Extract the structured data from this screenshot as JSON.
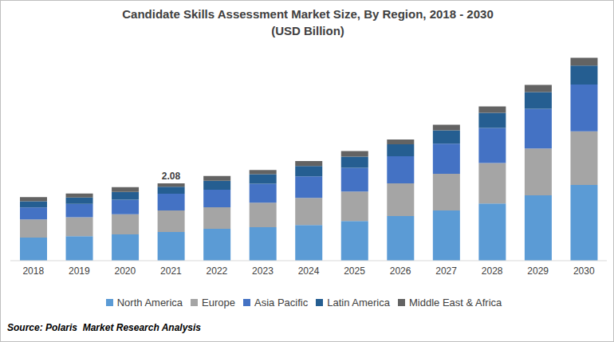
{
  "chart_data": {
    "type": "bar",
    "title": "Candidate Skills Assessment Market Size, By Region, 2018 - 2030",
    "subtitle": "(USD Billion)",
    "categories": [
      "2018",
      "2019",
      "2020",
      "2021",
      "2022",
      "2023",
      "2024",
      "2025",
      "2026",
      "2027",
      "2028",
      "2029",
      "2030"
    ],
    "series": [
      {
        "name": "North America",
        "color": "#5b9bd5",
        "values": [
          0.62,
          0.66,
          0.71,
          0.77,
          0.86,
          0.9,
          0.96,
          1.07,
          1.2,
          1.35,
          1.54,
          1.76,
          2.04
        ]
      },
      {
        "name": "Europe",
        "color": "#a5a5a5",
        "values": [
          0.49,
          0.51,
          0.54,
          0.58,
          0.58,
          0.66,
          0.73,
          0.79,
          0.88,
          0.99,
          1.09,
          1.26,
          1.44
        ]
      },
      {
        "name": "Asia Pacific",
        "color": "#4472c4",
        "values": [
          0.32,
          0.36,
          0.39,
          0.45,
          0.47,
          0.51,
          0.58,
          0.64,
          0.73,
          0.81,
          0.94,
          1.07,
          1.26
        ]
      },
      {
        "name": "Latin America",
        "color": "#255e91",
        "values": [
          0.17,
          0.17,
          0.21,
          0.19,
          0.24,
          0.26,
          0.28,
          0.3,
          0.32,
          0.36,
          0.41,
          0.45,
          0.51
        ]
      },
      {
        "name": "Middle East & Africa",
        "color": "#636363",
        "values": [
          0.11,
          0.11,
          0.13,
          0.09,
          0.13,
          0.11,
          0.13,
          0.15,
          0.13,
          0.15,
          0.17,
          0.19,
          0.21
        ]
      }
    ],
    "stacked": true,
    "ylim": [
      0,
      5.6
    ],
    "grid": false,
    "tick_labels": "x",
    "annotations": [
      {
        "text": "2.08",
        "x": "2021",
        "y": 2.08
      }
    ],
    "source": "Source: Polaris  Market Research Analysis"
  }
}
